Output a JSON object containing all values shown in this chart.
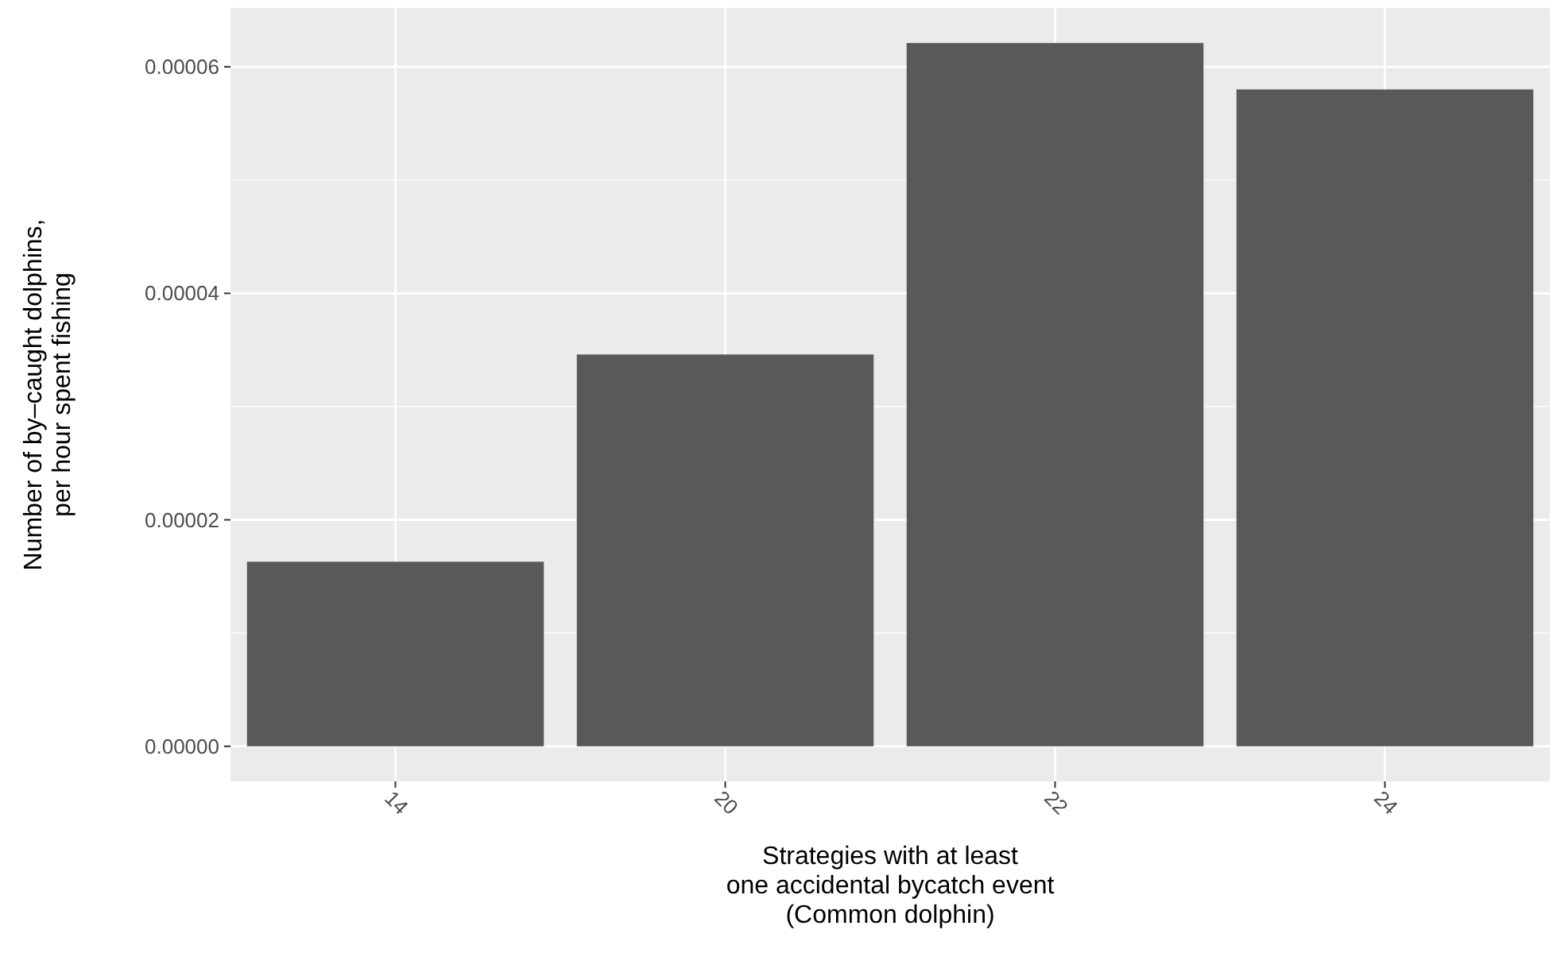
{
  "chart_data": {
    "type": "bar",
    "xlabel": "Strategies with at least\none accidental bycatch event\n(Common dolphin)",
    "ylabel": "Number of by–caught dolphins,\nper hour spent fishing",
    "categories": [
      "14",
      "20",
      "22",
      "24"
    ],
    "values": [
      1.63e-05,
      3.46e-05,
      6.21e-05,
      5.8e-05
    ],
    "color": "#595959",
    "ylim": [
      -3.1e-06,
      6.52e-05
    ],
    "yticks": [
      {
        "value": 0,
        "label": "0.00000"
      },
      {
        "value": 2e-05,
        "label": "0.00002"
      },
      {
        "value": 4e-05,
        "label": "0.00004"
      },
      {
        "value": 6e-05,
        "label": "0.00006"
      }
    ],
    "grid": true
  }
}
